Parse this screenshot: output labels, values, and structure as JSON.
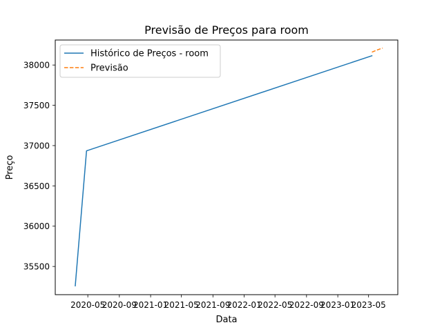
{
  "chart_data": {
    "type": "line",
    "title": "Previsão de Preços para room",
    "xlabel": "Data",
    "ylabel": "Preço",
    "x_ticks": [
      "2020-05",
      "2020-09",
      "2021-01",
      "2021-05",
      "2021-09",
      "2022-01",
      "2022-05",
      "2022-09",
      "2023-01",
      "2023-05"
    ],
    "y_ticks": [
      35500,
      36000,
      36500,
      37000,
      37500,
      38000
    ],
    "xlim": [
      "2019-12-26",
      "2023-08-23"
    ],
    "ylim": [
      35150,
      38310
    ],
    "grid": false,
    "legend": "top-left",
    "series": [
      {
        "name": "Histórico de Preços - room",
        "color": "#1f77b4",
        "style": "solid",
        "x": [
          "2020-03-13",
          "2020-04-26",
          "2023-05-14"
        ],
        "y": [
          35260,
          36935,
          38115
        ]
      },
      {
        "name": "Previsão",
        "color": "#ff7f0e",
        "style": "dashed",
        "x": [
          "2023-05-14",
          "2023-05-28",
          "2023-06-11",
          "2023-06-25"
        ],
        "y": [
          38160,
          38178,
          38195,
          38210
        ]
      }
    ]
  }
}
